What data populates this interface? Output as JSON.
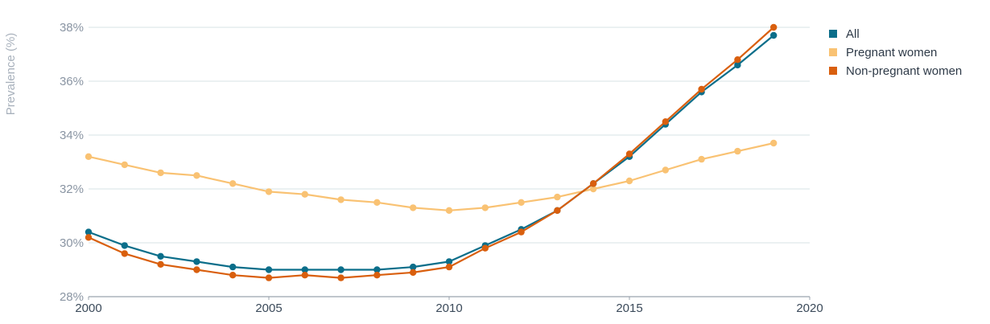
{
  "chart_data": {
    "type": "line",
    "title": "",
    "xlabel": "",
    "ylabel": "Prevalence (%)",
    "x": [
      2000,
      2001,
      2002,
      2003,
      2004,
      2005,
      2006,
      2007,
      2008,
      2009,
      2010,
      2011,
      2012,
      2013,
      2014,
      2015,
      2016,
      2017,
      2018,
      2019
    ],
    "xlim": [
      2000,
      2020
    ],
    "ylim": [
      28,
      38
    ],
    "x_ticks": [
      2000,
      2005,
      2010,
      2015,
      2020
    ],
    "x_tick_labels": [
      "2000",
      "2005",
      "2010",
      "2015",
      "2020"
    ],
    "y_ticks": [
      28,
      30,
      32,
      34,
      36,
      38
    ],
    "y_tick_labels": [
      "28%",
      "30%",
      "32%",
      "34%",
      "36%",
      "38%"
    ],
    "grid": "horizontal",
    "legend_position": "top-right",
    "series": [
      {
        "name": "All",
        "color": "#0b6e8a",
        "values": [
          30.4,
          29.9,
          29.5,
          29.3,
          29.1,
          29.0,
          29.0,
          29.0,
          29.0,
          29.1,
          29.3,
          29.9,
          30.5,
          31.2,
          32.2,
          33.2,
          34.4,
          35.6,
          36.6,
          37.7
        ]
      },
      {
        "name": "Pregnant women",
        "color": "#f9c273",
        "values": [
          33.2,
          32.9,
          32.6,
          32.5,
          32.2,
          31.9,
          31.8,
          31.6,
          31.5,
          31.3,
          31.2,
          31.3,
          31.5,
          31.7,
          32.0,
          32.3,
          32.7,
          33.1,
          33.4,
          33.7
        ]
      },
      {
        "name": "Non-pregnant women",
        "color": "#d95f0e",
        "values": [
          30.2,
          29.6,
          29.2,
          29.0,
          28.8,
          28.7,
          28.8,
          28.7,
          28.8,
          28.9,
          29.1,
          29.8,
          30.4,
          31.2,
          32.2,
          33.3,
          34.5,
          35.7,
          36.8,
          38.0
        ]
      }
    ]
  }
}
